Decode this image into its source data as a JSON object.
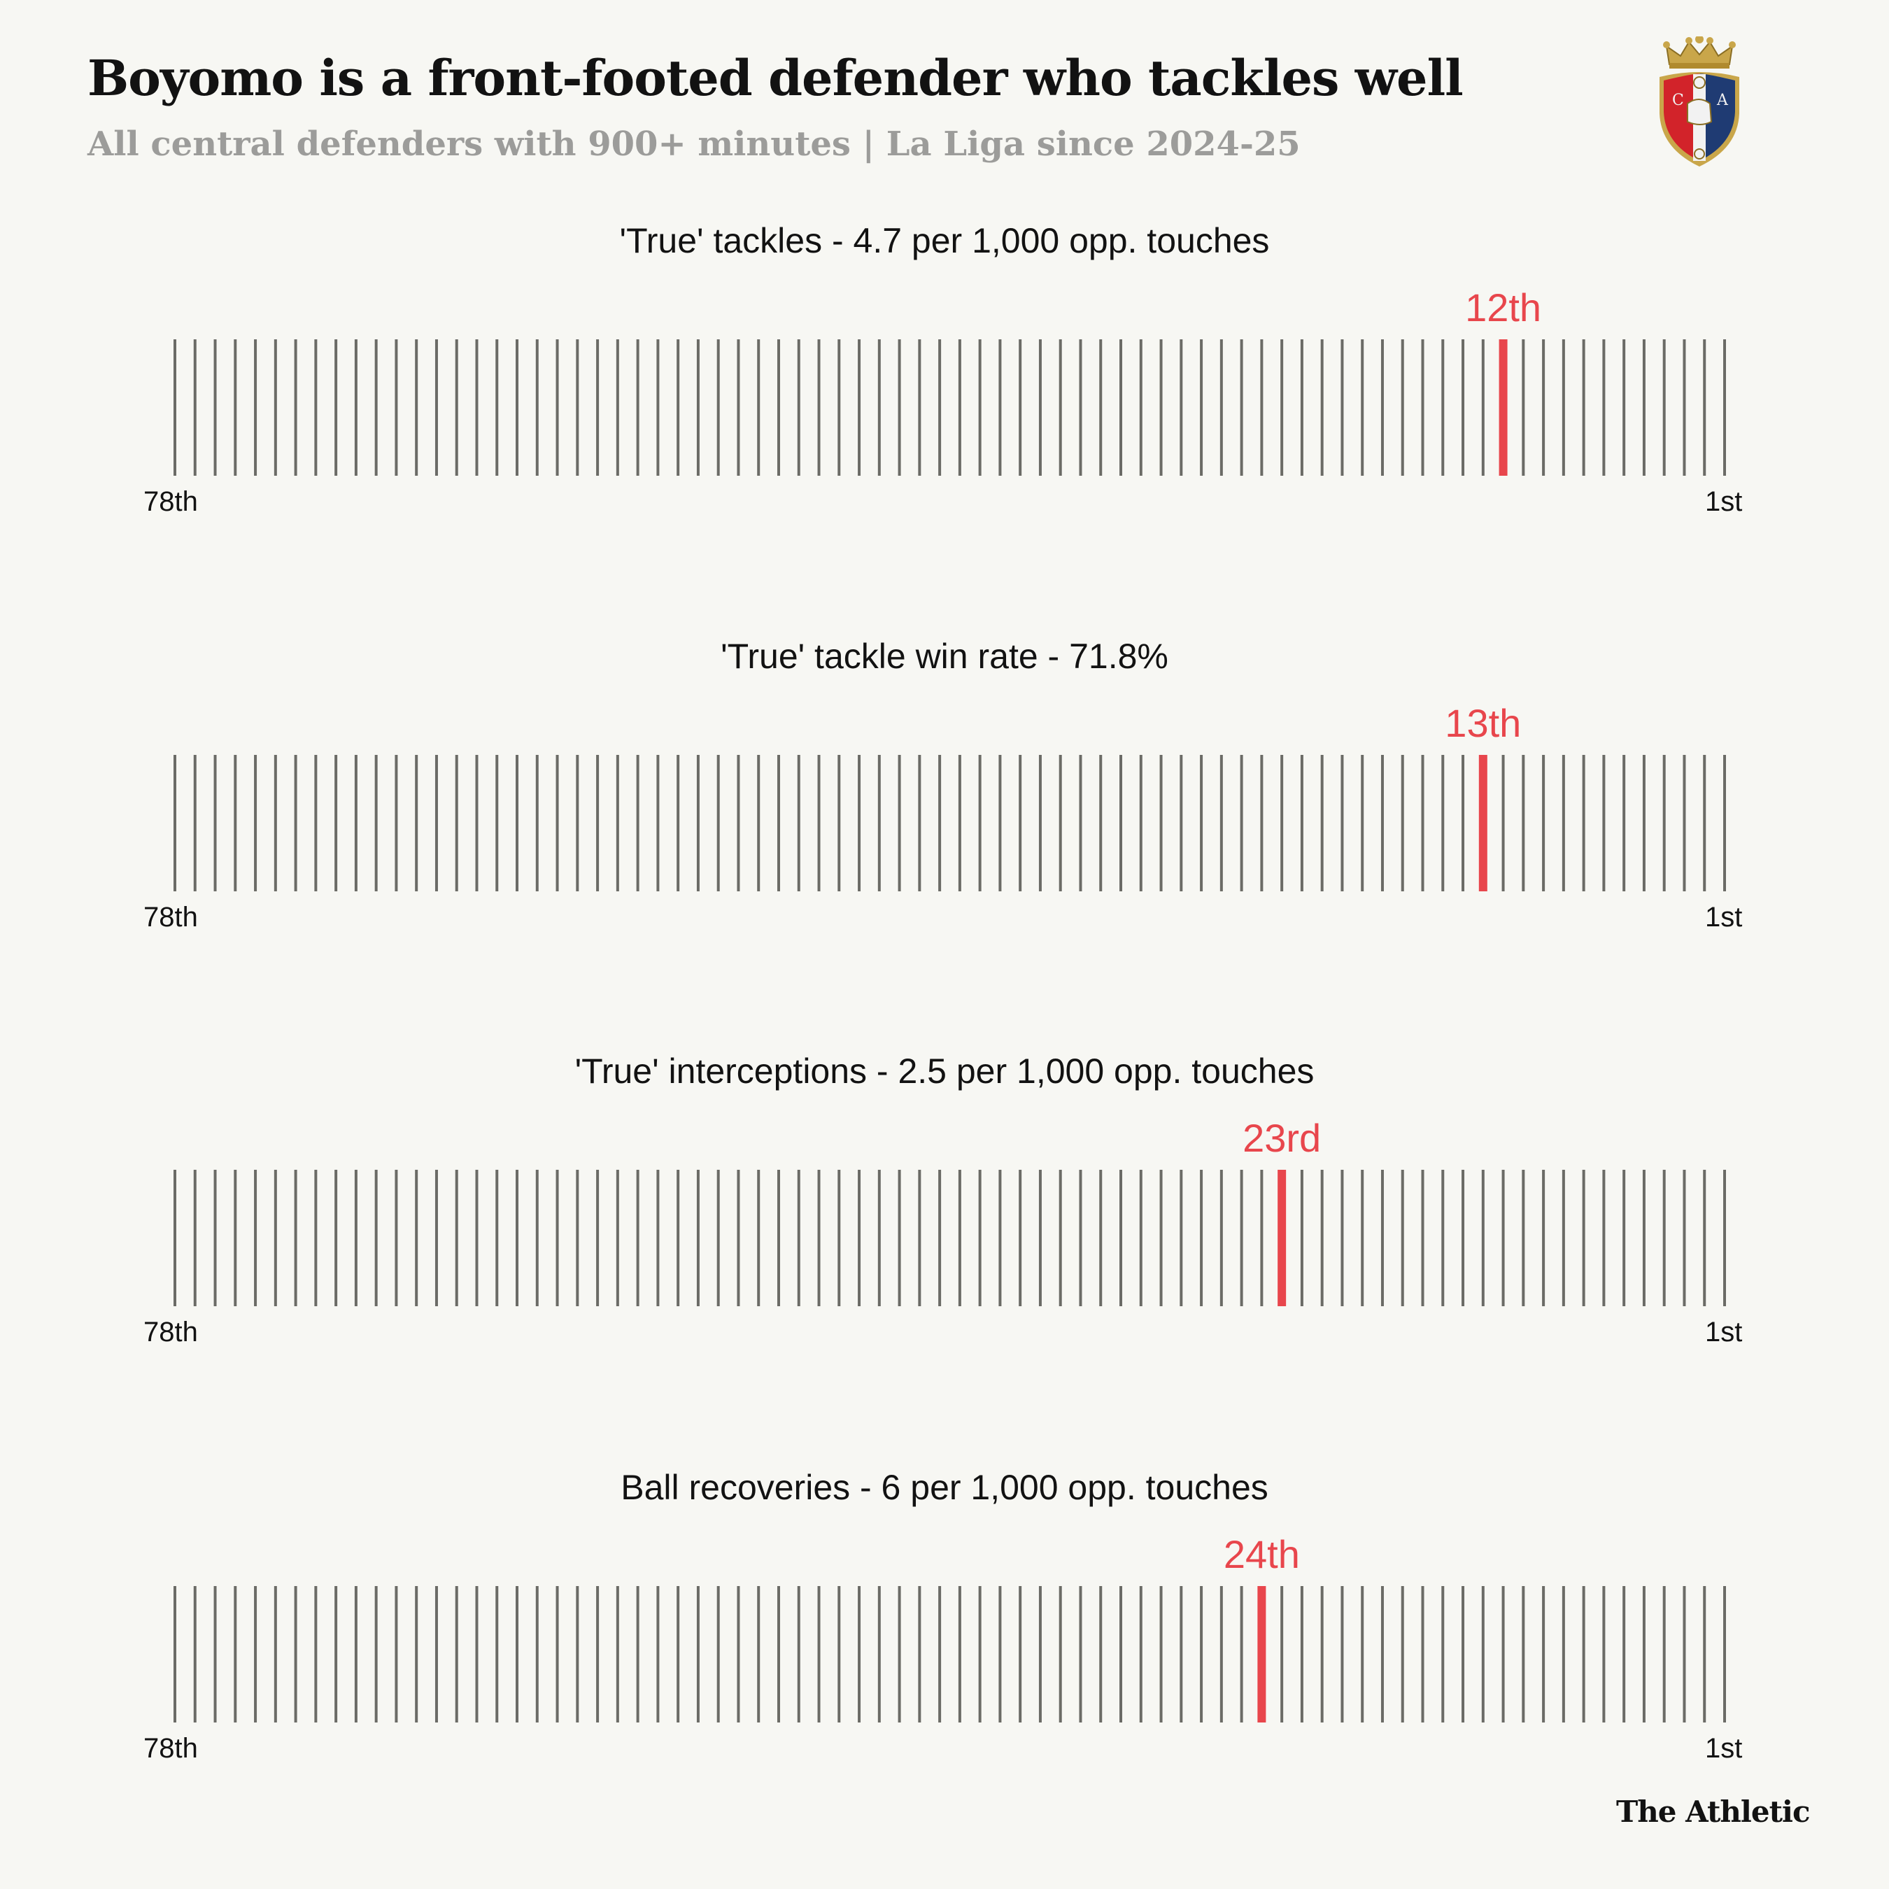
{
  "header": {
    "title": "Boyomo is a front-footed defender who tackles well",
    "subtitle": "All central defenders with 900+ minutes | La Liga since 2024-25"
  },
  "colors": {
    "highlight": "#e8464c",
    "tick": "#6b6b66",
    "background": "#f7f7f3"
  },
  "chart_data": [
    {
      "type": "rank-strip",
      "title": "'True' tackles - 4.7 per 1,000 opp. touches",
      "total": 78,
      "rank": 12,
      "rank_label": "12th",
      "x_start_label": "78th",
      "x_end_label": "1st"
    },
    {
      "type": "rank-strip",
      "title": "'True' tackle win rate - 71.8%",
      "total": 78,
      "rank": 13,
      "rank_label": "13th",
      "x_start_label": "78th",
      "x_end_label": "1st"
    },
    {
      "type": "rank-strip",
      "title": "'True' interceptions - 2.5 per 1,000 opp. touches",
      "total": 78,
      "rank": 23,
      "rank_label": "23rd",
      "x_start_label": "78th",
      "x_end_label": "1st"
    },
    {
      "type": "rank-strip",
      "title": "Ball recoveries - 6 per 1,000 opp. touches",
      "total": 78,
      "rank": 24,
      "rank_label": "24th",
      "x_start_label": "78th",
      "x_end_label": "1st"
    }
  ],
  "footer": {
    "brand": "The Athletic"
  },
  "logo": {
    "icon": "club-crest-icon"
  }
}
